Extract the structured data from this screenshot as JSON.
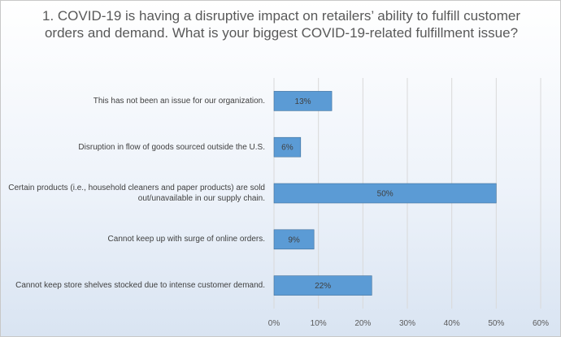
{
  "chart_data": {
    "type": "bar",
    "orientation": "horizontal",
    "title": "1. COVID-19 is having a disruptive impact on retailers’ ability to fulfill customer orders and demand. What is your biggest COVID-19-related fulfillment issue?",
    "categories": [
      "This has not been an issue for our organization.",
      "Disruption in flow of goods sourced outside the U.S.",
      "Certain products (i.e., household cleaners and paper products) are sold out/unavailable in our supply chain.",
      "Cannot keep up with surge of online orders.",
      "Cannot keep store shelves stocked due to intense customer demand."
    ],
    "values": [
      13,
      6,
      50,
      9,
      22
    ],
    "data_labels": [
      "13%",
      "6%",
      "50%",
      "9%",
      "22%"
    ],
    "xlim": [
      0,
      60
    ],
    "ticks": [
      0,
      10,
      20,
      30,
      40,
      50,
      60
    ],
    "tick_labels": [
      "0%",
      "10%",
      "20%",
      "30%",
      "40%",
      "50%",
      "60%"
    ],
    "grid": true,
    "legend": "none",
    "colors": {
      "bar": "#5b9bd5",
      "bar_edge": "#41719c",
      "grid": "#d9d9d9",
      "text": "#404040"
    }
  }
}
